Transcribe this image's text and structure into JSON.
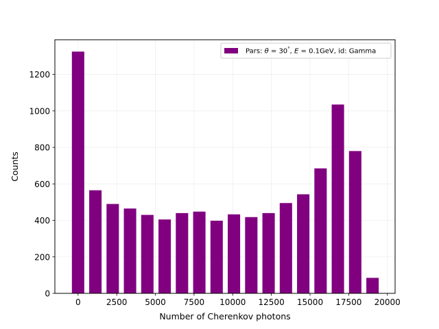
{
  "chart_data": {
    "type": "bar",
    "xlabel": "Number of Cherenkov photons",
    "ylabel": "Counts",
    "xlim": [
      -1500,
      20500
    ],
    "ylim": [
      0,
      1390
    ],
    "bar_width": 800,
    "x_ticks": [
      0,
      2500,
      5000,
      7500,
      10000,
      12500,
      15000,
      17500,
      20000
    ],
    "x_tick_labels": [
      "0",
      "2500",
      "5000",
      "7500",
      "10000",
      "12500",
      "15000",
      "17500",
      "20000"
    ],
    "y_ticks": [
      0,
      200,
      400,
      600,
      800,
      1000,
      1200
    ],
    "y_tick_labels": [
      "0",
      "200",
      "400",
      "600",
      "800",
      "1000",
      "1200"
    ],
    "grid": true,
    "legend_position": "top-right",
    "series": [
      {
        "name": "Pars: θ = 30°, E = 0.1GeV, id: Gamma",
        "color": "#800080",
        "x": [
          0,
          1120,
          2240,
          3360,
          4480,
          5600,
          6720,
          7840,
          8960,
          10080,
          11200,
          12320,
          13440,
          14560,
          15680,
          16800,
          17920,
          19040
        ],
        "values": [
          1325,
          565,
          490,
          465,
          430,
          405,
          440,
          448,
          398,
          433,
          418,
          440,
          495,
          543,
          685,
          1035,
          780,
          85
        ]
      }
    ],
    "legend": {
      "prefix": "Pars: ",
      "theta_symbol": "θ",
      "eq1": " = 30",
      "degree": "°",
      "sep1": ", ",
      "energy_symbol": "E",
      "eq2": " = 0.1GeV",
      "suffix": ", id: Gamma"
    }
  }
}
